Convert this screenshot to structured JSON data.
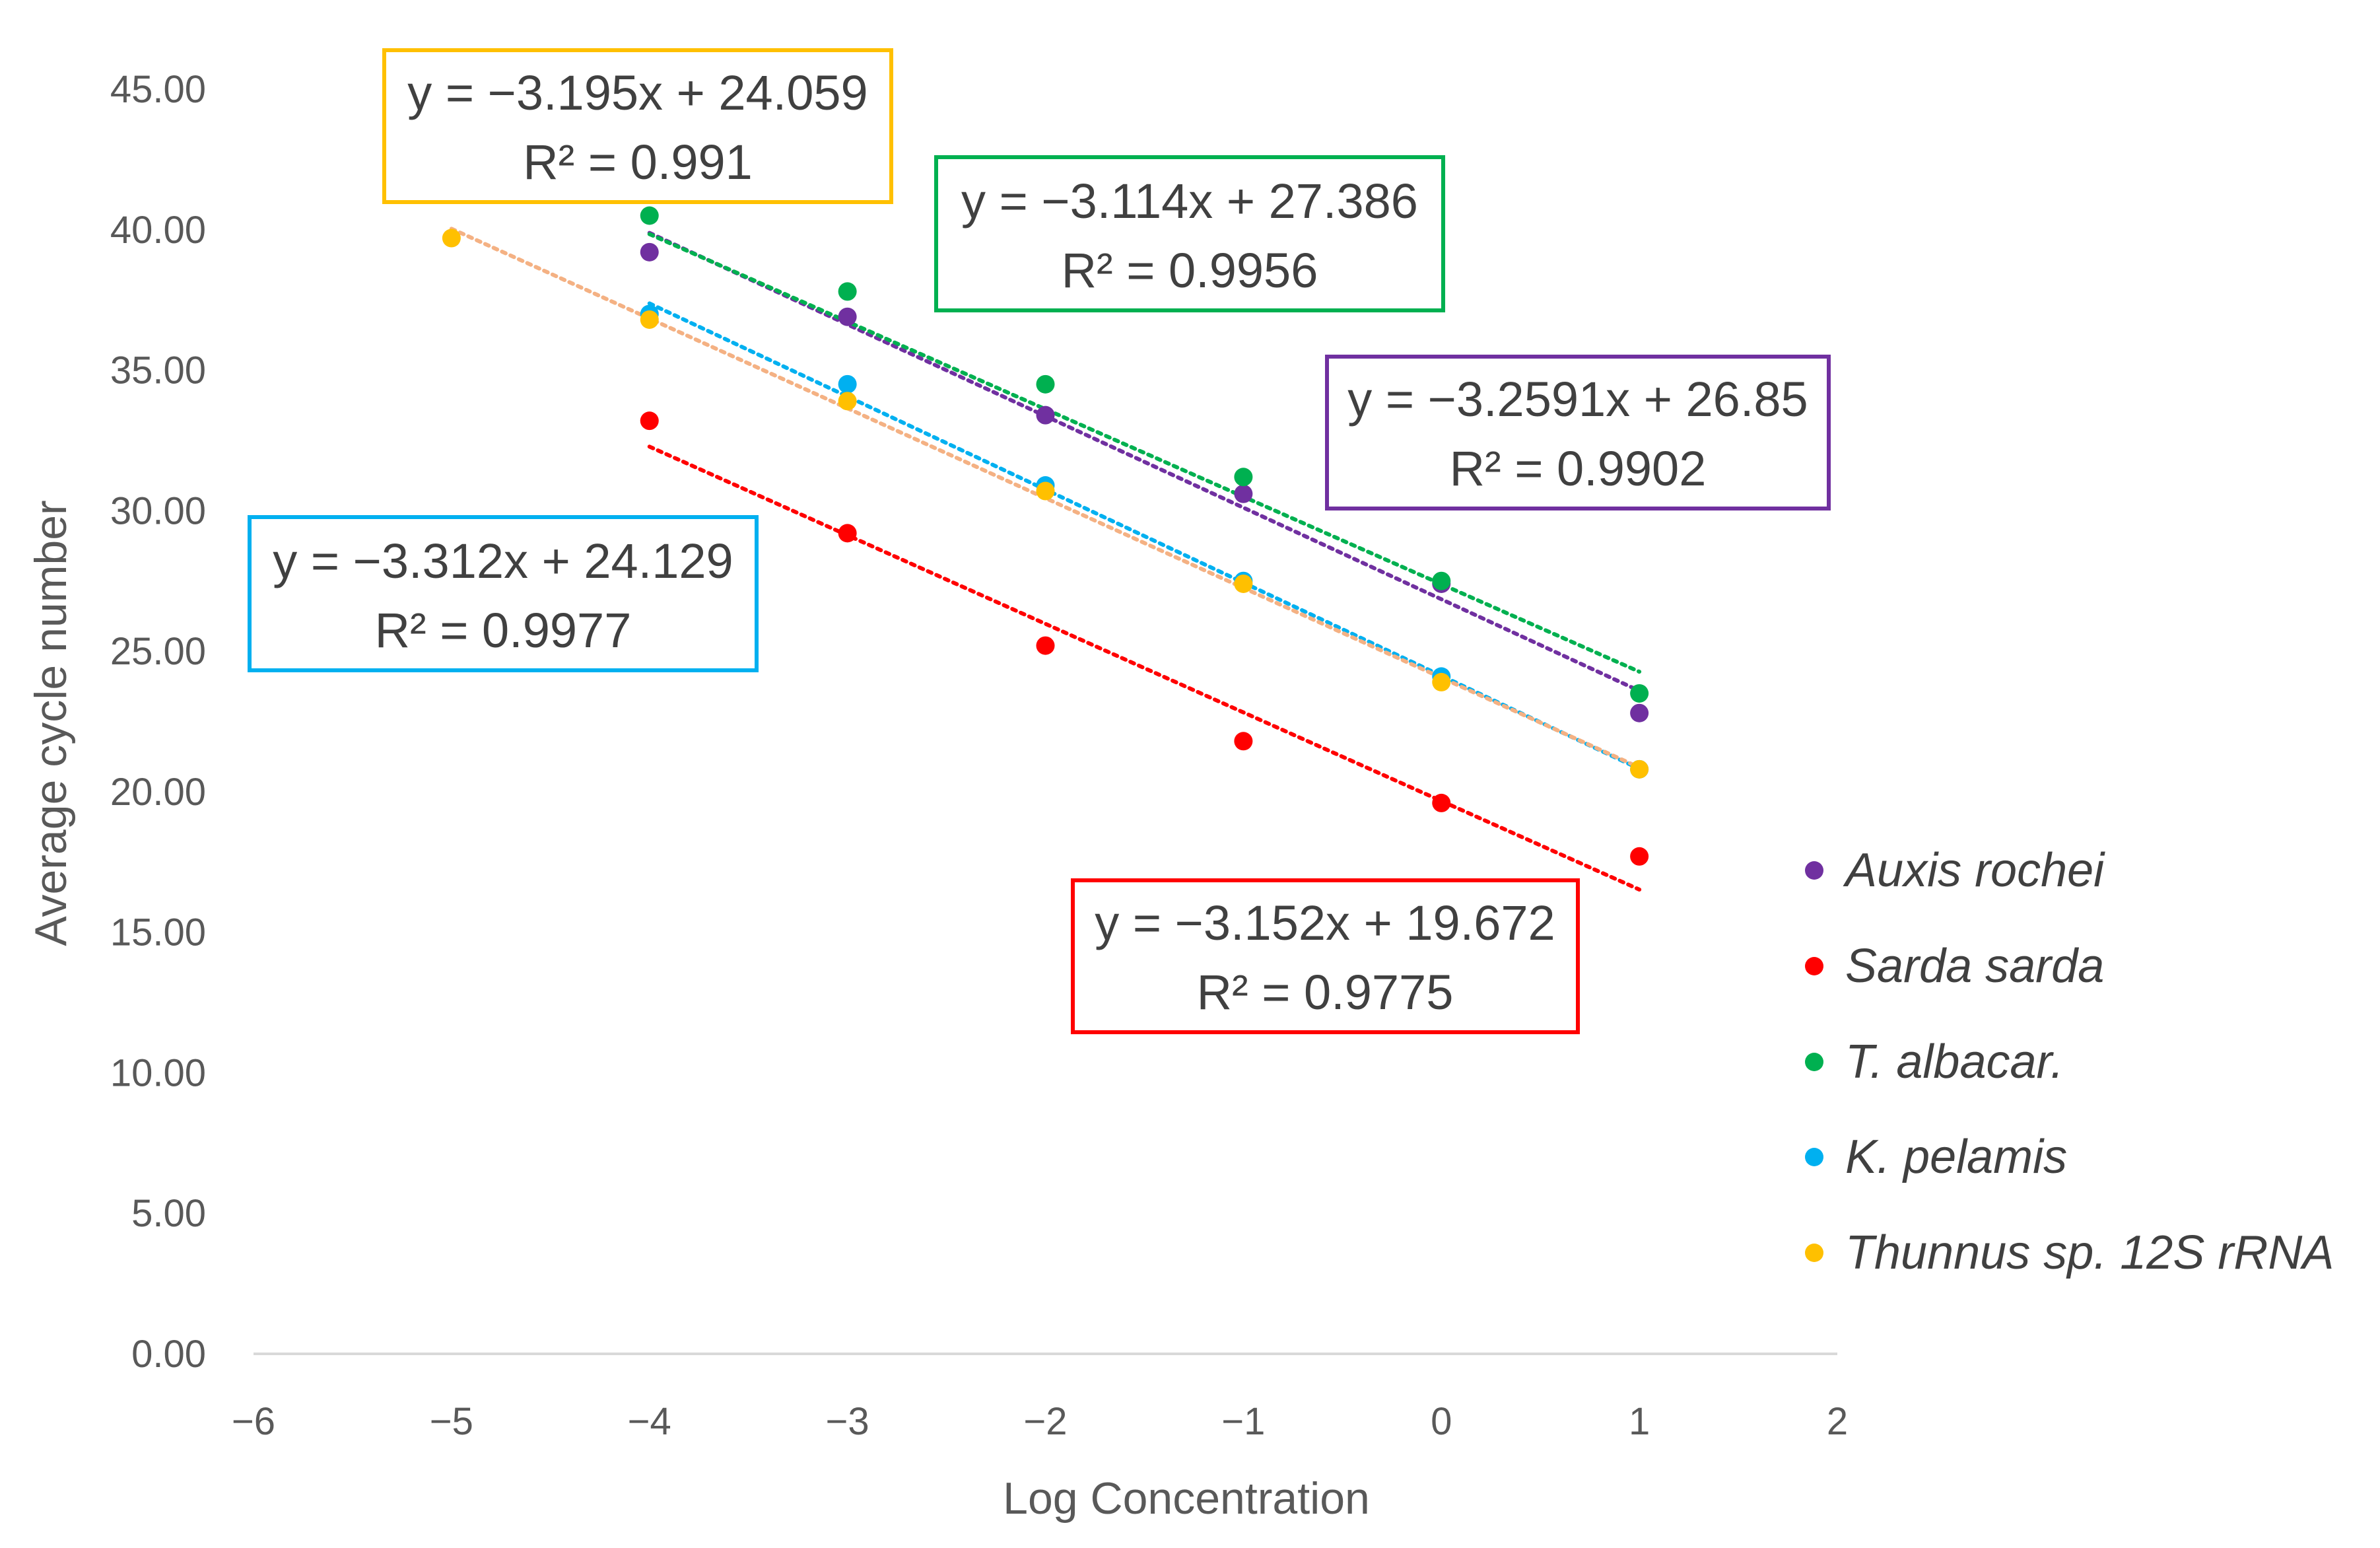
{
  "chart_data": {
    "type": "scatter",
    "xlabel": "Log Concentration",
    "ylabel": "Average cycle number",
    "xlim": [
      -6,
      2
    ],
    "ylim": [
      0,
      45
    ],
    "xticks": [
      -6,
      -5,
      -4,
      -3,
      -2,
      -1,
      0,
      1,
      2
    ],
    "yticks": [
      0,
      5,
      10,
      15,
      20,
      25,
      30,
      35,
      40,
      45
    ],
    "xtick_labels": [
      "−6",
      "−5",
      "−4",
      "−3",
      "−2",
      "−1",
      "0",
      "1",
      "2"
    ],
    "ytick_labels": [
      "0.00",
      "5.00",
      "10.00",
      "15.00",
      "20.00",
      "25.00",
      "30.00",
      "35.00",
      "40.00",
      "45.00"
    ],
    "grid": false,
    "legend_position": "right",
    "series": [
      {
        "name": "Auxis rochei",
        "color": "#7030a0",
        "x": [
          -4,
          -3,
          -2,
          -1,
          0,
          1
        ],
        "y": [
          39.2,
          36.9,
          33.4,
          30.6,
          27.4,
          22.8
        ],
        "trendline": {
          "slope": -3.2591,
          "intercept": 26.85,
          "x_range": [
            -4,
            1
          ]
        },
        "equation": "y = −3.2591x + 26.85",
        "r2": "R² = 0.9902"
      },
      {
        "name": "Sarda sarda",
        "color": "#ff0000",
        "x": [
          -4,
          -3,
          -2,
          -1,
          0,
          1
        ],
        "y": [
          33.2,
          29.2,
          25.2,
          21.8,
          19.6,
          17.7
        ],
        "trendline": {
          "slope": -3.152,
          "intercept": 19.672,
          "x_range": [
            -4,
            1
          ]
        },
        "equation": "y = −3.152x + 19.672",
        "r2": "R² = 0.9775"
      },
      {
        "name": "T. albacar.",
        "color": "#00b050",
        "x": [
          -4,
          -3,
          -2,
          -1,
          0,
          1
        ],
        "y": [
          40.5,
          37.8,
          34.5,
          31.2,
          27.5,
          23.5
        ],
        "trendline": {
          "slope": -3.114,
          "intercept": 27.386,
          "x_range": [
            -4,
            1
          ]
        },
        "equation": "y = −3.114x + 27.386",
        "r2": "R² = 0.9956"
      },
      {
        "name": "K. pelamis",
        "color": "#00b0f0",
        "x": [
          -4,
          -3,
          -2,
          -1,
          0,
          1
        ],
        "y": [
          37.0,
          34.5,
          30.9,
          27.5,
          24.1,
          20.8
        ],
        "trendline": {
          "slope": -3.312,
          "intercept": 24.129,
          "x_range": [
            -4,
            1
          ]
        },
        "equation": "y = −3.312x + 24.129",
        "r2": "R² = 0.9977"
      },
      {
        "name": "Thunnus sp. 12S rRNA",
        "color": "#ffc000",
        "x": [
          -5,
          -4,
          -3,
          -2,
          -1,
          0,
          1
        ],
        "y": [
          39.7,
          36.8,
          33.9,
          30.7,
          27.4,
          23.9,
          20.8
        ],
        "trendline": {
          "slope": -3.195,
          "intercept": 24.059,
          "x_range": [
            -5,
            1
          ]
        },
        "trendline_color": "#f4b183",
        "equation": "y = −3.195x + 24.059",
        "r2": "R² = 0.991"
      }
    ]
  }
}
